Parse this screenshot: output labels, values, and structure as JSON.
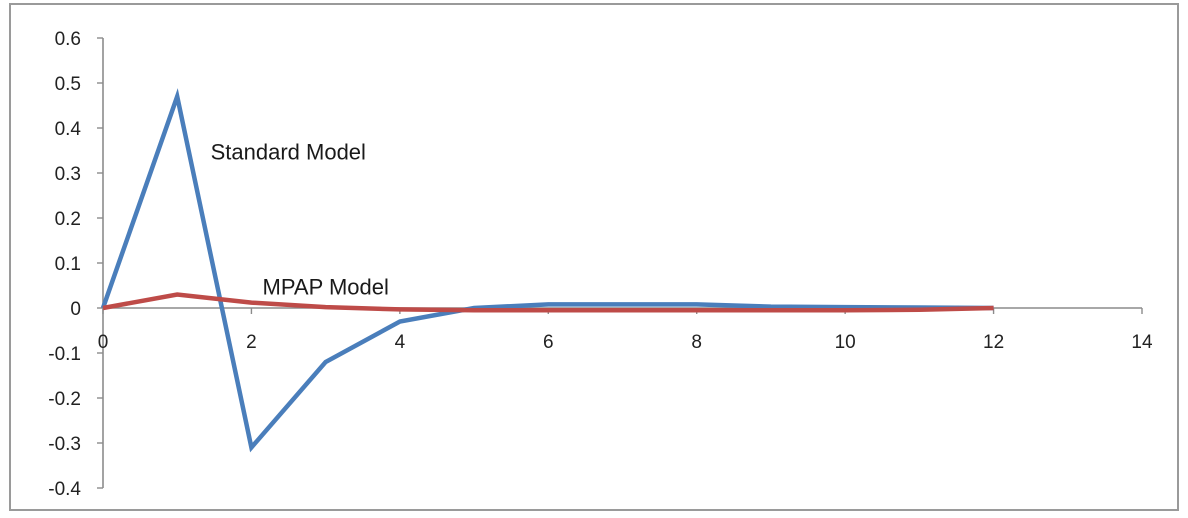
{
  "chart_data": {
    "type": "line",
    "title": "",
    "xlabel": "",
    "ylabel": "",
    "xlim": [
      0,
      14
    ],
    "ylim": [
      -0.4,
      0.6
    ],
    "x_ticks": [
      0,
      2,
      4,
      6,
      8,
      10,
      12,
      14
    ],
    "y_ticks": [
      0.6,
      0.5,
      0.4,
      0.3,
      0.2,
      0.1,
      0,
      -0.1,
      -0.2,
      -0.3,
      -0.4
    ],
    "x_tick_labels": [
      "0",
      "2",
      "4",
      "6",
      "8",
      "10",
      "12",
      "14"
    ],
    "y_tick_labels": [
      "0.6",
      "0.5",
      "0.4",
      "0.3",
      "0.2",
      "0.1",
      "0",
      "-0.1",
      "-0.2",
      "-0.3",
      "-0.4"
    ],
    "grid": false,
    "legend": "none",
    "series": [
      {
        "color": "#4a7ebb",
        "x": [
          0,
          1,
          2,
          3,
          4,
          5,
          6,
          7,
          8,
          9,
          10,
          11,
          12
        ],
        "y": [
          0,
          0.47,
          -0.31,
          -0.12,
          -0.03,
          0,
          0.008,
          0.008,
          0.008,
          0.003,
          0.002,
          0.001,
          0
        ]
      },
      {
        "color": "#be4b48",
        "x": [
          0,
          1,
          2,
          3,
          4,
          5,
          6,
          7,
          8,
          9,
          10,
          11,
          12
        ],
        "y": [
          0,
          0.03,
          0.012,
          0.002,
          -0.003,
          -0.005,
          -0.005,
          -0.005,
          -0.005,
          -0.005,
          -0.005,
          -0.004,
          0
        ]
      }
    ],
    "annotations": [
      {
        "text": "Standard Model",
        "x": 1.45,
        "y": 0.33
      },
      {
        "text": "MPAP Model",
        "x": 2.15,
        "y": 0.03
      }
    ]
  }
}
